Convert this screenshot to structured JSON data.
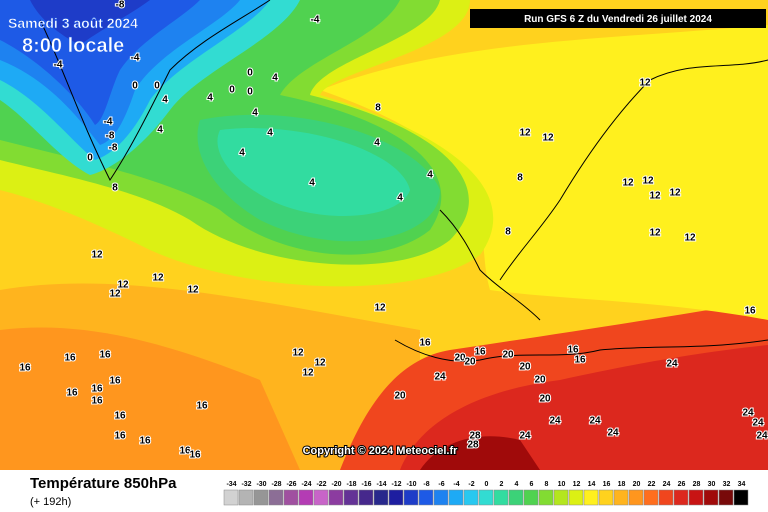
{
  "header": {
    "date": "Samedi 3 août 2024",
    "time": "8:00 locale",
    "run": "Run GFS 6 Z du Vendredi 26 juillet 2024"
  },
  "copyright": "Copyright © 2024 Meteociel.fr",
  "footer": {
    "title": "Température 850hPa",
    "subtitle": "(+ 192h)"
  },
  "scale": {
    "values": [
      -34,
      -32,
      -30,
      -28,
      -26,
      -24,
      -22,
      -20,
      -18,
      -16,
      -14,
      -12,
      -10,
      -8,
      -6,
      -4,
      -2,
      0,
      2,
      4,
      6,
      8,
      10,
      12,
      14,
      16,
      18,
      20,
      22,
      24,
      26,
      28,
      30,
      32,
      34
    ],
    "colors": [
      "#d2d2d2",
      "#b4b4b4",
      "#969696",
      "#8c6e96",
      "#a050a0",
      "#b43cb4",
      "#c864c8",
      "#8c3ca0",
      "#643296",
      "#46288c",
      "#28288c",
      "#1e1ea0",
      "#1e3cc8",
      "#1e5ae6",
      "#1e82f0",
      "#1eaaf5",
      "#28c8f0",
      "#32dcd2",
      "#32dca0",
      "#3cd278",
      "#50d250",
      "#82dc32",
      "#b4e61e",
      "#dcf014",
      "#fff01e",
      "#ffd21e",
      "#ffb41e",
      "#ff961e",
      "#ff6e1e",
      "#f0461e",
      "#dc281e",
      "#c81414",
      "#a00a0a",
      "#780a0a",
      "#000000"
    ]
  },
  "contour_labels": [
    -8,
    -4,
    -4,
    -4,
    0,
    4,
    0,
    0,
    0,
    0,
    4,
    4,
    -4,
    -8,
    -8,
    0,
    4,
    4,
    4,
    4,
    4,
    4,
    4,
    4,
    8,
    8,
    8,
    8,
    12,
    12,
    12,
    12,
    12,
    12,
    12,
    12,
    12,
    12,
    12,
    12,
    12,
    12,
    12,
    12,
    12,
    12,
    16,
    16,
    16,
    16,
    16,
    16,
    16,
    16,
    16,
    16,
    16,
    16,
    16,
    16,
    16,
    16,
    16,
    16,
    20,
    20,
    20,
    20,
    20,
    20,
    20,
    24,
    24,
    24,
    24,
    24,
    24,
    24,
    24,
    24,
    28,
    28
  ]
}
